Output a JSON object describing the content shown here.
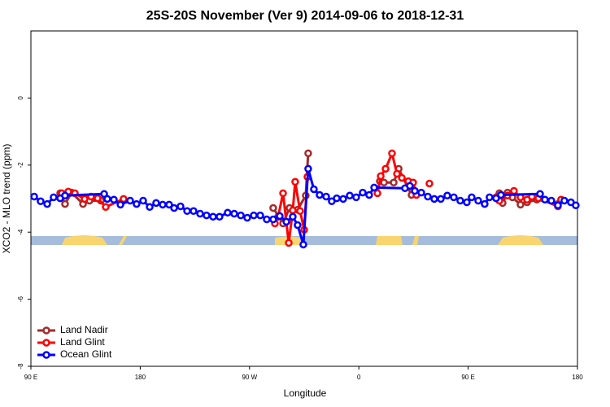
{
  "chart_data": {
    "type": "line",
    "title": "25S-20S November (Ver 9)   2014-09-06 to 2018-12-31",
    "xlabel": "Longitude",
    "ylabel": "XCO2 - MLO trend (ppm)",
    "xlim": [
      90,
      540
    ],
    "ylim": [
      -8,
      2
    ],
    "xticks": [
      {
        "value": 90,
        "label": "90 E"
      },
      180,
      {
        "value": 270,
        "label": "90 W"
      },
      {
        "value": 360,
        "label": "0"
      },
      {
        "value": 450,
        "label": "90 E"
      },
      {
        "value": 540,
        "label": "180"
      }
    ],
    "yticks": [
      0,
      -2,
      -4,
      -6,
      -8
    ],
    "legend": "bottom-left",
    "series": [
      {
        "name": "Land Nadir",
        "color": "#a52a2a",
        "x": [
          114.1,
          118.1,
          123.5,
          132.9,
          138.2,
          147.6,
          null,
          289.5,
          297.6,
          302.9,
          309.6,
          316.3,
          318.3,
          null,
          377.3,
          380.7,
          388.7,
          392.8,
          403.4,
          null,
          475.7,
          478.4,
          482.4,
          486.4,
          493.1,
          498.5,
          506.5,
          523.9
        ],
        "values": [
          -2.84,
          -3.16,
          -2.82,
          -3.16,
          -3.06,
          -3.06,
          null,
          -3.28,
          -3.74,
          -3.28,
          -3.33,
          -2.91,
          -1.65,
          null,
          -2.48,
          -2.52,
          -2.52,
          -2.11,
          -2.89,
          null,
          -2.84,
          -3.13,
          -2.82,
          -2.96,
          -3.18,
          -3.11,
          -3.03,
          -3.16
        ]
      },
      {
        "name": "Land Glint",
        "color": "#ff0000",
        "x": [
          115.4,
          120.8,
          126.2,
          134.2,
          139.5,
          144.9,
          151.6,
          166.3,
          null,
          290.9,
          293.6,
          297.6,
          302.3,
          305.6,
          307.6,
          311.6,
          315.0,
          317.7,
          null,
          375.3,
          378.0,
          382.0,
          387.3,
          391.4,
          395.4,
          400.7,
          404.7,
          407.4,
          null,
          418.1,
          null,
          473.0,
          475.7,
          482.4,
          487.7,
          493.1,
          498.5,
          502.5,
          507.8,
          523.9,
          526.5
        ],
        "values": [
          -2.84,
          -2.79,
          -2.84,
          -3.01,
          -2.94,
          -2.99,
          -3.25,
          -3.01,
          null,
          -3.74,
          -3.54,
          -2.84,
          -4.32,
          -3.35,
          -2.5,
          -3.37,
          -3.93,
          -2.35,
          null,
          -2.84,
          -2.33,
          -2.11,
          -1.65,
          -2.26,
          -2.38,
          -2.48,
          -2.52,
          -2.89,
          null,
          -2.55,
          null,
          -2.96,
          -3.06,
          -2.91,
          -2.77,
          -2.96,
          -3.03,
          -2.94,
          -2.99,
          -3.23,
          -3.03
        ]
      },
      {
        "name": "Ocean Glint",
        "color": "#0000ff",
        "x": [
          92.7,
          98.0,
          103.4,
          108.7,
          114.1,
          118.1,
          150.3,
          152.9,
          158.3,
          163.7,
          171.7,
          177.0,
          182.4,
          187.8,
          193.1,
          198.5,
          203.8,
          207.9,
          213.2,
          218.6,
          223.9,
          229.3,
          234.6,
          240.0,
          245.3,
          252.0,
          257.4,
          262.8,
          268.1,
          273.5,
          278.8,
          284.2,
          289.5,
          294.9,
          300.3,
          305.6,
          309.6,
          314.3,
          318.3,
          323.0,
          327.7,
          333.1,
          337.7,
          341.8,
          347.1,
          352.5,
          357.8,
          363.2,
          368.5,
          372.6,
          398.0,
          402.0,
          406.1,
          411.4,
          416.8,
          422.1,
          427.5,
          432.8,
          438.2,
          443.5,
          448.9,
          452.9,
          458.3,
          463.6,
          467.6,
          473.0,
          477.0,
          509.2,
          513.2,
          518.5,
          523.9,
          529.2,
          534.6,
          538.6
        ],
        "values": [
          -2.94,
          -3.08,
          -3.16,
          -2.96,
          -2.99,
          -2.91,
          -2.86,
          -3.01,
          -3.03,
          -3.18,
          -3.06,
          -3.16,
          -3.06,
          -3.25,
          -3.13,
          -3.18,
          -3.18,
          -3.28,
          -3.23,
          -3.37,
          -3.37,
          -3.45,
          -3.5,
          -3.54,
          -3.54,
          -3.42,
          -3.45,
          -3.5,
          -3.57,
          -3.5,
          -3.5,
          -3.62,
          -3.62,
          -3.52,
          -3.69,
          -3.54,
          -3.79,
          -4.37,
          -2.11,
          -2.72,
          -2.89,
          -2.94,
          -3.08,
          -2.99,
          -3.01,
          -2.91,
          -2.96,
          -2.82,
          -2.89,
          -2.67,
          -2.69,
          -2.62,
          -2.77,
          -2.82,
          -2.94,
          -3.01,
          -3.01,
          -2.91,
          -2.96,
          -3.06,
          -3.11,
          -2.96,
          -3.06,
          -3.16,
          -2.96,
          -2.99,
          -2.89,
          -2.86,
          -3.03,
          -3.06,
          -3.2,
          -3.06,
          -3.11,
          -3.2
        ]
      }
    ]
  }
}
